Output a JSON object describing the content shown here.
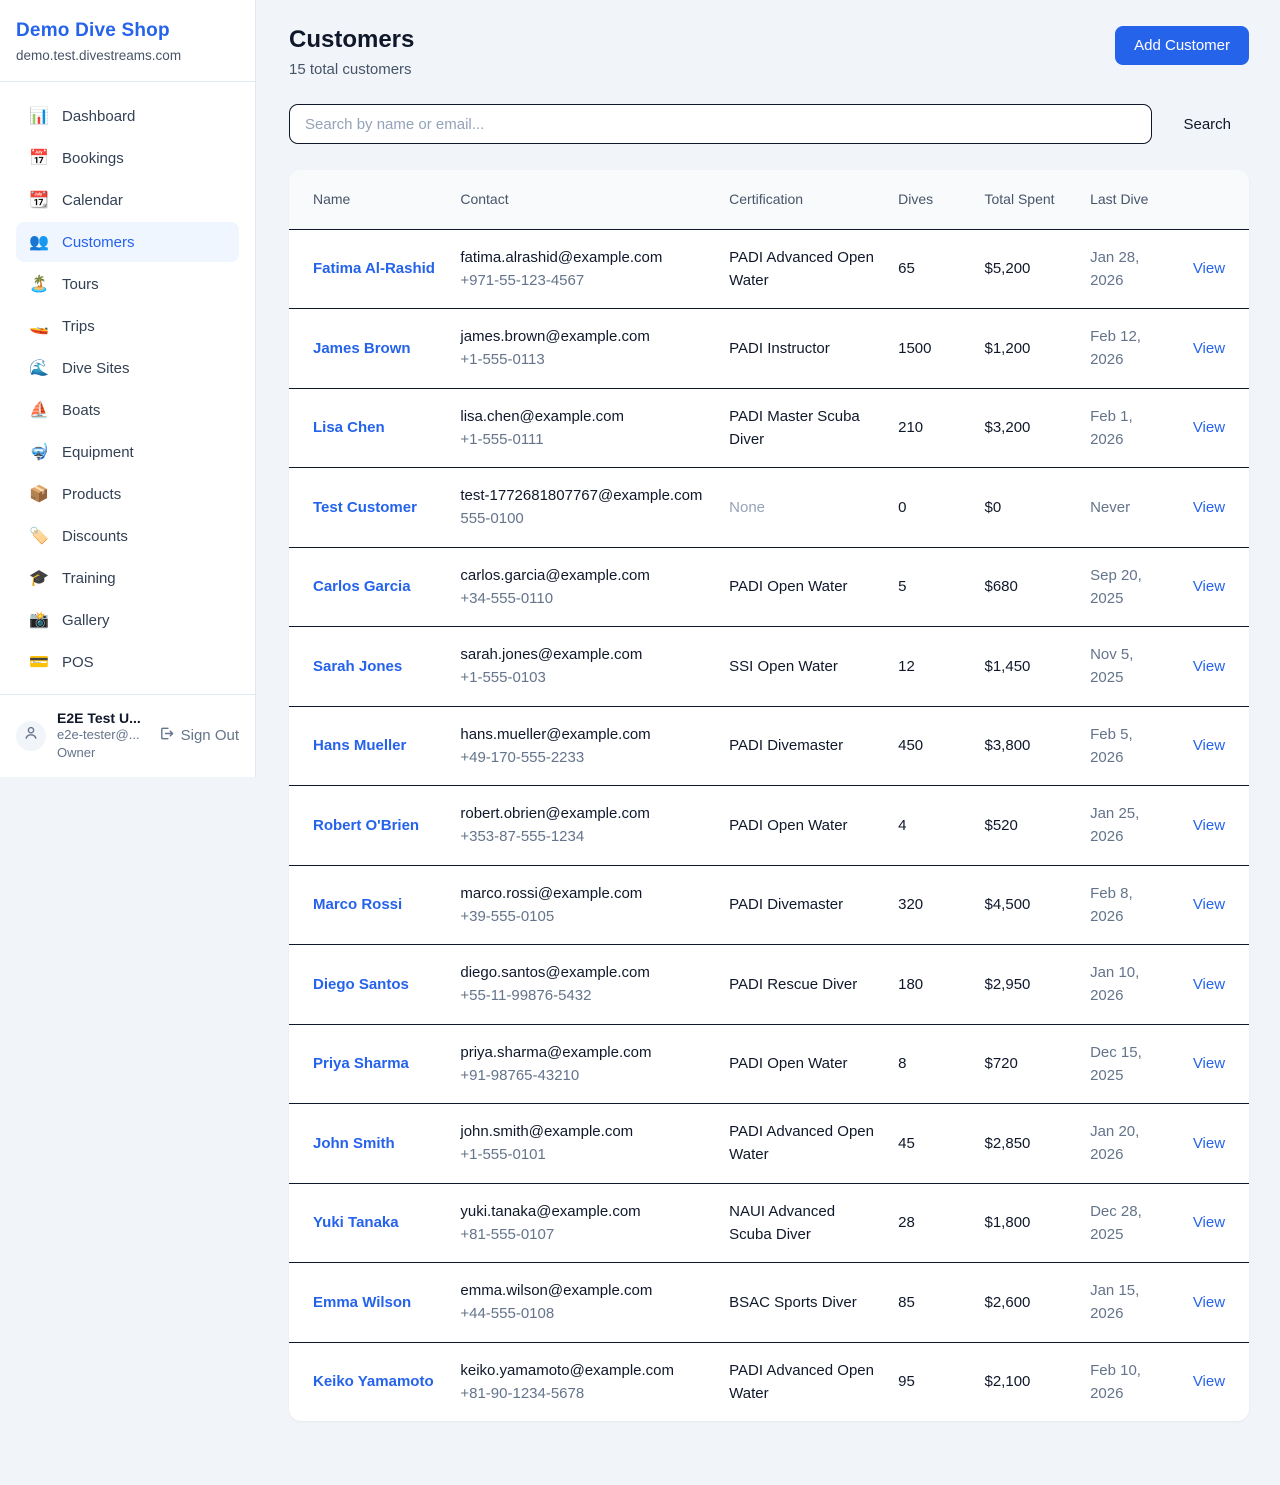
{
  "sidebar": {
    "title": "Demo Dive Shop",
    "domain": "demo.test.divestreams.com",
    "items": [
      {
        "icon": "📊",
        "icon_name": "dashboard-icon",
        "label": "Dashboard",
        "active": false
      },
      {
        "icon": "📅",
        "icon_name": "bookings-icon",
        "label": "Bookings",
        "active": false
      },
      {
        "icon": "📆",
        "icon_name": "calendar-icon",
        "label": "Calendar",
        "active": false
      },
      {
        "icon": "👥",
        "icon_name": "customers-icon",
        "label": "Customers",
        "active": true
      },
      {
        "icon": "🏝️",
        "icon_name": "tours-icon",
        "label": "Tours",
        "active": false
      },
      {
        "icon": "🚤",
        "icon_name": "trips-icon",
        "label": "Trips",
        "active": false
      },
      {
        "icon": "🌊",
        "icon_name": "dive-sites-icon",
        "label": "Dive Sites",
        "active": false
      },
      {
        "icon": "⛵",
        "icon_name": "boats-icon",
        "label": "Boats",
        "active": false
      },
      {
        "icon": "🤿",
        "icon_name": "equipment-icon",
        "label": "Equipment",
        "active": false
      },
      {
        "icon": "📦",
        "icon_name": "products-icon",
        "label": "Products",
        "active": false
      },
      {
        "icon": "🏷️",
        "icon_name": "discounts-icon",
        "label": "Discounts",
        "active": false
      },
      {
        "icon": "🎓",
        "icon_name": "training-icon",
        "label": "Training",
        "active": false
      },
      {
        "icon": "📸",
        "icon_name": "gallery-icon",
        "label": "Gallery",
        "active": false
      },
      {
        "icon": "💳",
        "icon_name": "pos-icon",
        "label": "POS",
        "active": false
      }
    ],
    "user": {
      "name": "E2E Test U...",
      "email": "e2e-tester@...",
      "role": "Owner",
      "signout_label": "Sign Out"
    }
  },
  "header": {
    "title": "Customers",
    "subtitle": "15 total customers",
    "add_button": "Add Customer"
  },
  "search": {
    "placeholder": "Search by name or email...",
    "button": "Search"
  },
  "table": {
    "columns": [
      "Name",
      "Contact",
      "Certification",
      "Dives",
      "Total Spent",
      "Last Dive",
      ""
    ],
    "action_label": "View",
    "rows": [
      {
        "name": "Fatima Al-Rashid",
        "email": "fatima.alrashid@example.com",
        "phone": "+971-55-123-4567",
        "certification": "PADI Advanced Open Water",
        "dives": "65",
        "total_spent": "$5,200",
        "last_dive": "Jan 28, 2026"
      },
      {
        "name": "James Brown",
        "email": "james.brown@example.com",
        "phone": "+1-555-0113",
        "certification": "PADI Instructor",
        "dives": "1500",
        "total_spent": "$1,200",
        "last_dive": "Feb 12, 2026"
      },
      {
        "name": "Lisa Chen",
        "email": "lisa.chen@example.com",
        "phone": "+1-555-0111",
        "certification": "PADI Master Scuba Diver",
        "dives": "210",
        "total_spent": "$3,200",
        "last_dive": "Feb 1, 2026"
      },
      {
        "name": "Test Customer",
        "email": "test-1772681807767@example.com",
        "phone": "555-0100",
        "certification": "None",
        "dives": "0",
        "total_spent": "$0",
        "last_dive": "Never"
      },
      {
        "name": "Carlos Garcia",
        "email": "carlos.garcia@example.com",
        "phone": "+34-555-0110",
        "certification": "PADI Open Water",
        "dives": "5",
        "total_spent": "$680",
        "last_dive": "Sep 20, 2025"
      },
      {
        "name": "Sarah Jones",
        "email": "sarah.jones@example.com",
        "phone": "+1-555-0103",
        "certification": "SSI Open Water",
        "dives": "12",
        "total_spent": "$1,450",
        "last_dive": "Nov 5, 2025"
      },
      {
        "name": "Hans Mueller",
        "email": "hans.mueller@example.com",
        "phone": "+49-170-555-2233",
        "certification": "PADI Divemaster",
        "dives": "450",
        "total_spent": "$3,800",
        "last_dive": "Feb 5, 2026"
      },
      {
        "name": "Robert O'Brien",
        "email": "robert.obrien@example.com",
        "phone": "+353-87-555-1234",
        "certification": "PADI Open Water",
        "dives": "4",
        "total_spent": "$520",
        "last_dive": "Jan 25, 2026"
      },
      {
        "name": "Marco Rossi",
        "email": "marco.rossi@example.com",
        "phone": "+39-555-0105",
        "certification": "PADI Divemaster",
        "dives": "320",
        "total_spent": "$4,500",
        "last_dive": "Feb 8, 2026"
      },
      {
        "name": "Diego Santos",
        "email": "diego.santos@example.com",
        "phone": "+55-11-99876-5432",
        "certification": "PADI Rescue Diver",
        "dives": "180",
        "total_spent": "$2,950",
        "last_dive": "Jan 10, 2026"
      },
      {
        "name": "Priya Sharma",
        "email": "priya.sharma@example.com",
        "phone": "+91-98765-43210",
        "certification": "PADI Open Water",
        "dives": "8",
        "total_spent": "$720",
        "last_dive": "Dec 15, 2025"
      },
      {
        "name": "John Smith",
        "email": "john.smith@example.com",
        "phone": "+1-555-0101",
        "certification": "PADI Advanced Open Water",
        "dives": "45",
        "total_spent": "$2,850",
        "last_dive": "Jan 20, 2026"
      },
      {
        "name": "Yuki Tanaka",
        "email": "yuki.tanaka@example.com",
        "phone": "+81-555-0107",
        "certification": "NAUI Advanced Scuba Diver",
        "dives": "28",
        "total_spent": "$1,800",
        "last_dive": "Dec 28, 2025"
      },
      {
        "name": "Emma Wilson",
        "email": "emma.wilson@example.com",
        "phone": "+44-555-0108",
        "certification": "BSAC Sports Diver",
        "dives": "85",
        "total_spent": "$2,600",
        "last_dive": "Jan 15, 2026"
      },
      {
        "name": "Keiko Yamamoto",
        "email": "keiko.yamamoto@example.com",
        "phone": "+81-90-1234-5678",
        "certification": "PADI Advanced Open Water",
        "dives": "95",
        "total_spent": "$2,100",
        "last_dive": "Feb 10, 2026"
      }
    ]
  },
  "colors": {
    "accent": "#2563eb",
    "active_nav_bg": "#eff6ff",
    "body_bg": "#f1f5f9",
    "table_header_bg": "#f8fafc",
    "row_border": "#0f172a",
    "muted_text": "#64748b",
    "placeholder_text": "#94a3b8"
  }
}
